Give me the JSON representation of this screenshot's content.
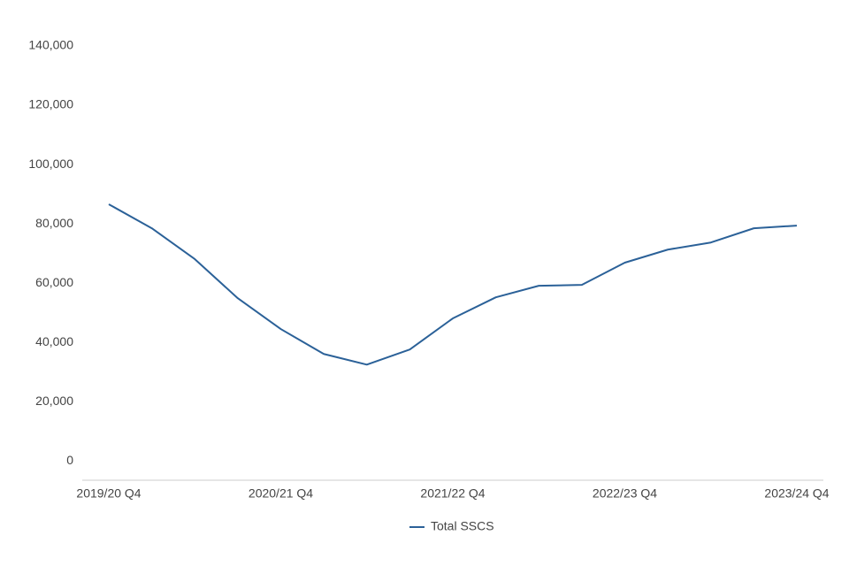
{
  "chart_data": {
    "type": "line",
    "categories": [
      "2019/20 Q4",
      null,
      null,
      null,
      "2020/21 Q4",
      null,
      null,
      null,
      "2021/22 Q4",
      null,
      null,
      null,
      "2022/23 Q4",
      null,
      null,
      null,
      "2023/24 Q4"
    ],
    "series": [
      {
        "name": "Total SSCS",
        "color": "#2b6198",
        "values": [
          86600,
          78500,
          68100,
          54900,
          44500,
          36100,
          32500,
          37600,
          48100,
          55200,
          59100,
          59400,
          66900,
          71300,
          73700,
          78500,
          79400
        ]
      }
    ],
    "ylim": [
      -6500,
      140000
    ],
    "yticks": [
      0,
      {
        "value": 20000,
        "label": "20,000"
      },
      {
        "value": 40000,
        "label": "40,000"
      },
      {
        "value": 60000,
        "label": "60,000"
      },
      {
        "value": 80000,
        "label": "80,000"
      },
      {
        "value": 100000,
        "label": "100,000"
      },
      {
        "value": 120000,
        "label": "120,000"
      },
      {
        "value": 140000,
        "label": "140,000"
      }
    ],
    "legend": "bottom"
  }
}
